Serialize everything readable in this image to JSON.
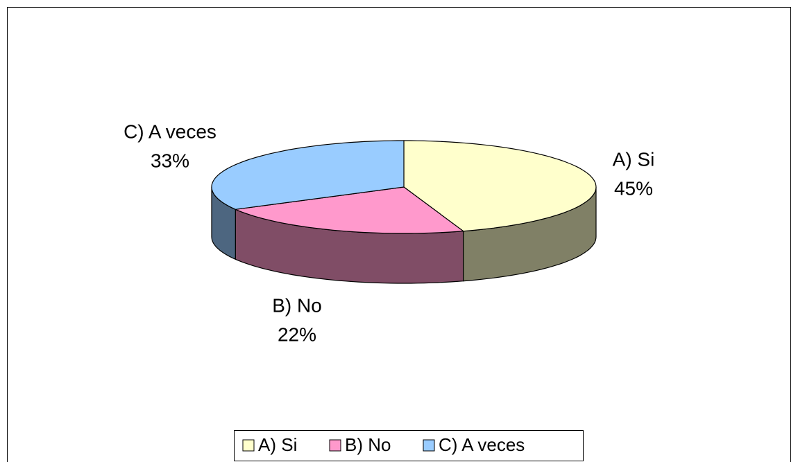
{
  "chart_data": {
    "type": "pie3d",
    "categories": [
      "A) Si",
      "B) No",
      "C) A veces"
    ],
    "values": [
      45,
      22,
      33
    ],
    "value_labels": [
      "45%",
      "22%",
      "33%"
    ],
    "colors": [
      "#FFFFCC",
      "#FF99CC",
      "#99CCFF"
    ],
    "legend": "bottom"
  }
}
